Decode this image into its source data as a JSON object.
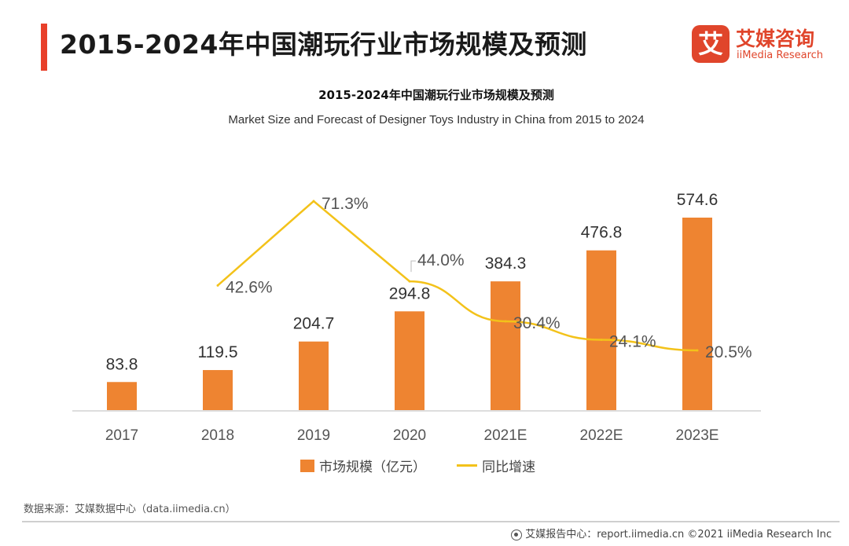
{
  "header": {
    "title": "2015-2024年中国潮玩行业市场规模及预测",
    "brand_cn": "艾媒咨询",
    "brand_en": "iiMedia Research",
    "brand_mark": "艾"
  },
  "colors": {
    "accent": "#e8402a",
    "bar": "#ee8431",
    "line": "#f3c21a"
  },
  "chart_data": {
    "type": "bar",
    "title": "2015-2024年中国潮玩行业市场规模及预测",
    "subtitle": "Market Size and Forecast of Designer Toys Industry in China from 2015 to 2024",
    "categories": [
      "2017",
      "2018",
      "2019",
      "2020",
      "2021E",
      "2022E",
      "2023E"
    ],
    "series": [
      {
        "name": "市场规模（亿元）",
        "type": "bar",
        "values": [
          83.8,
          119.5,
          204.7,
          294.8,
          384.3,
          476.8,
          574.6
        ],
        "labels": [
          "83.8",
          "119.5",
          "204.7",
          "294.8",
          "384.3",
          "476.8",
          "574.6"
        ]
      },
      {
        "name": "同比增速",
        "type": "line",
        "values": [
          null,
          42.6,
          71.3,
          44.0,
          30.4,
          24.1,
          20.5
        ],
        "labels": [
          "",
          "42.6%",
          "71.3%",
          "44.0%",
          "30.4%",
          "24.1%",
          "20.5%"
        ]
      }
    ],
    "legend_position": "bottom",
    "grid": false
  },
  "footer": {
    "source": "数据来源：艾媒数据中心（data.iimedia.cn）",
    "copyright": "艾媒报告中心：report.iimedia.cn  ©2021  iiMedia Research  Inc"
  }
}
